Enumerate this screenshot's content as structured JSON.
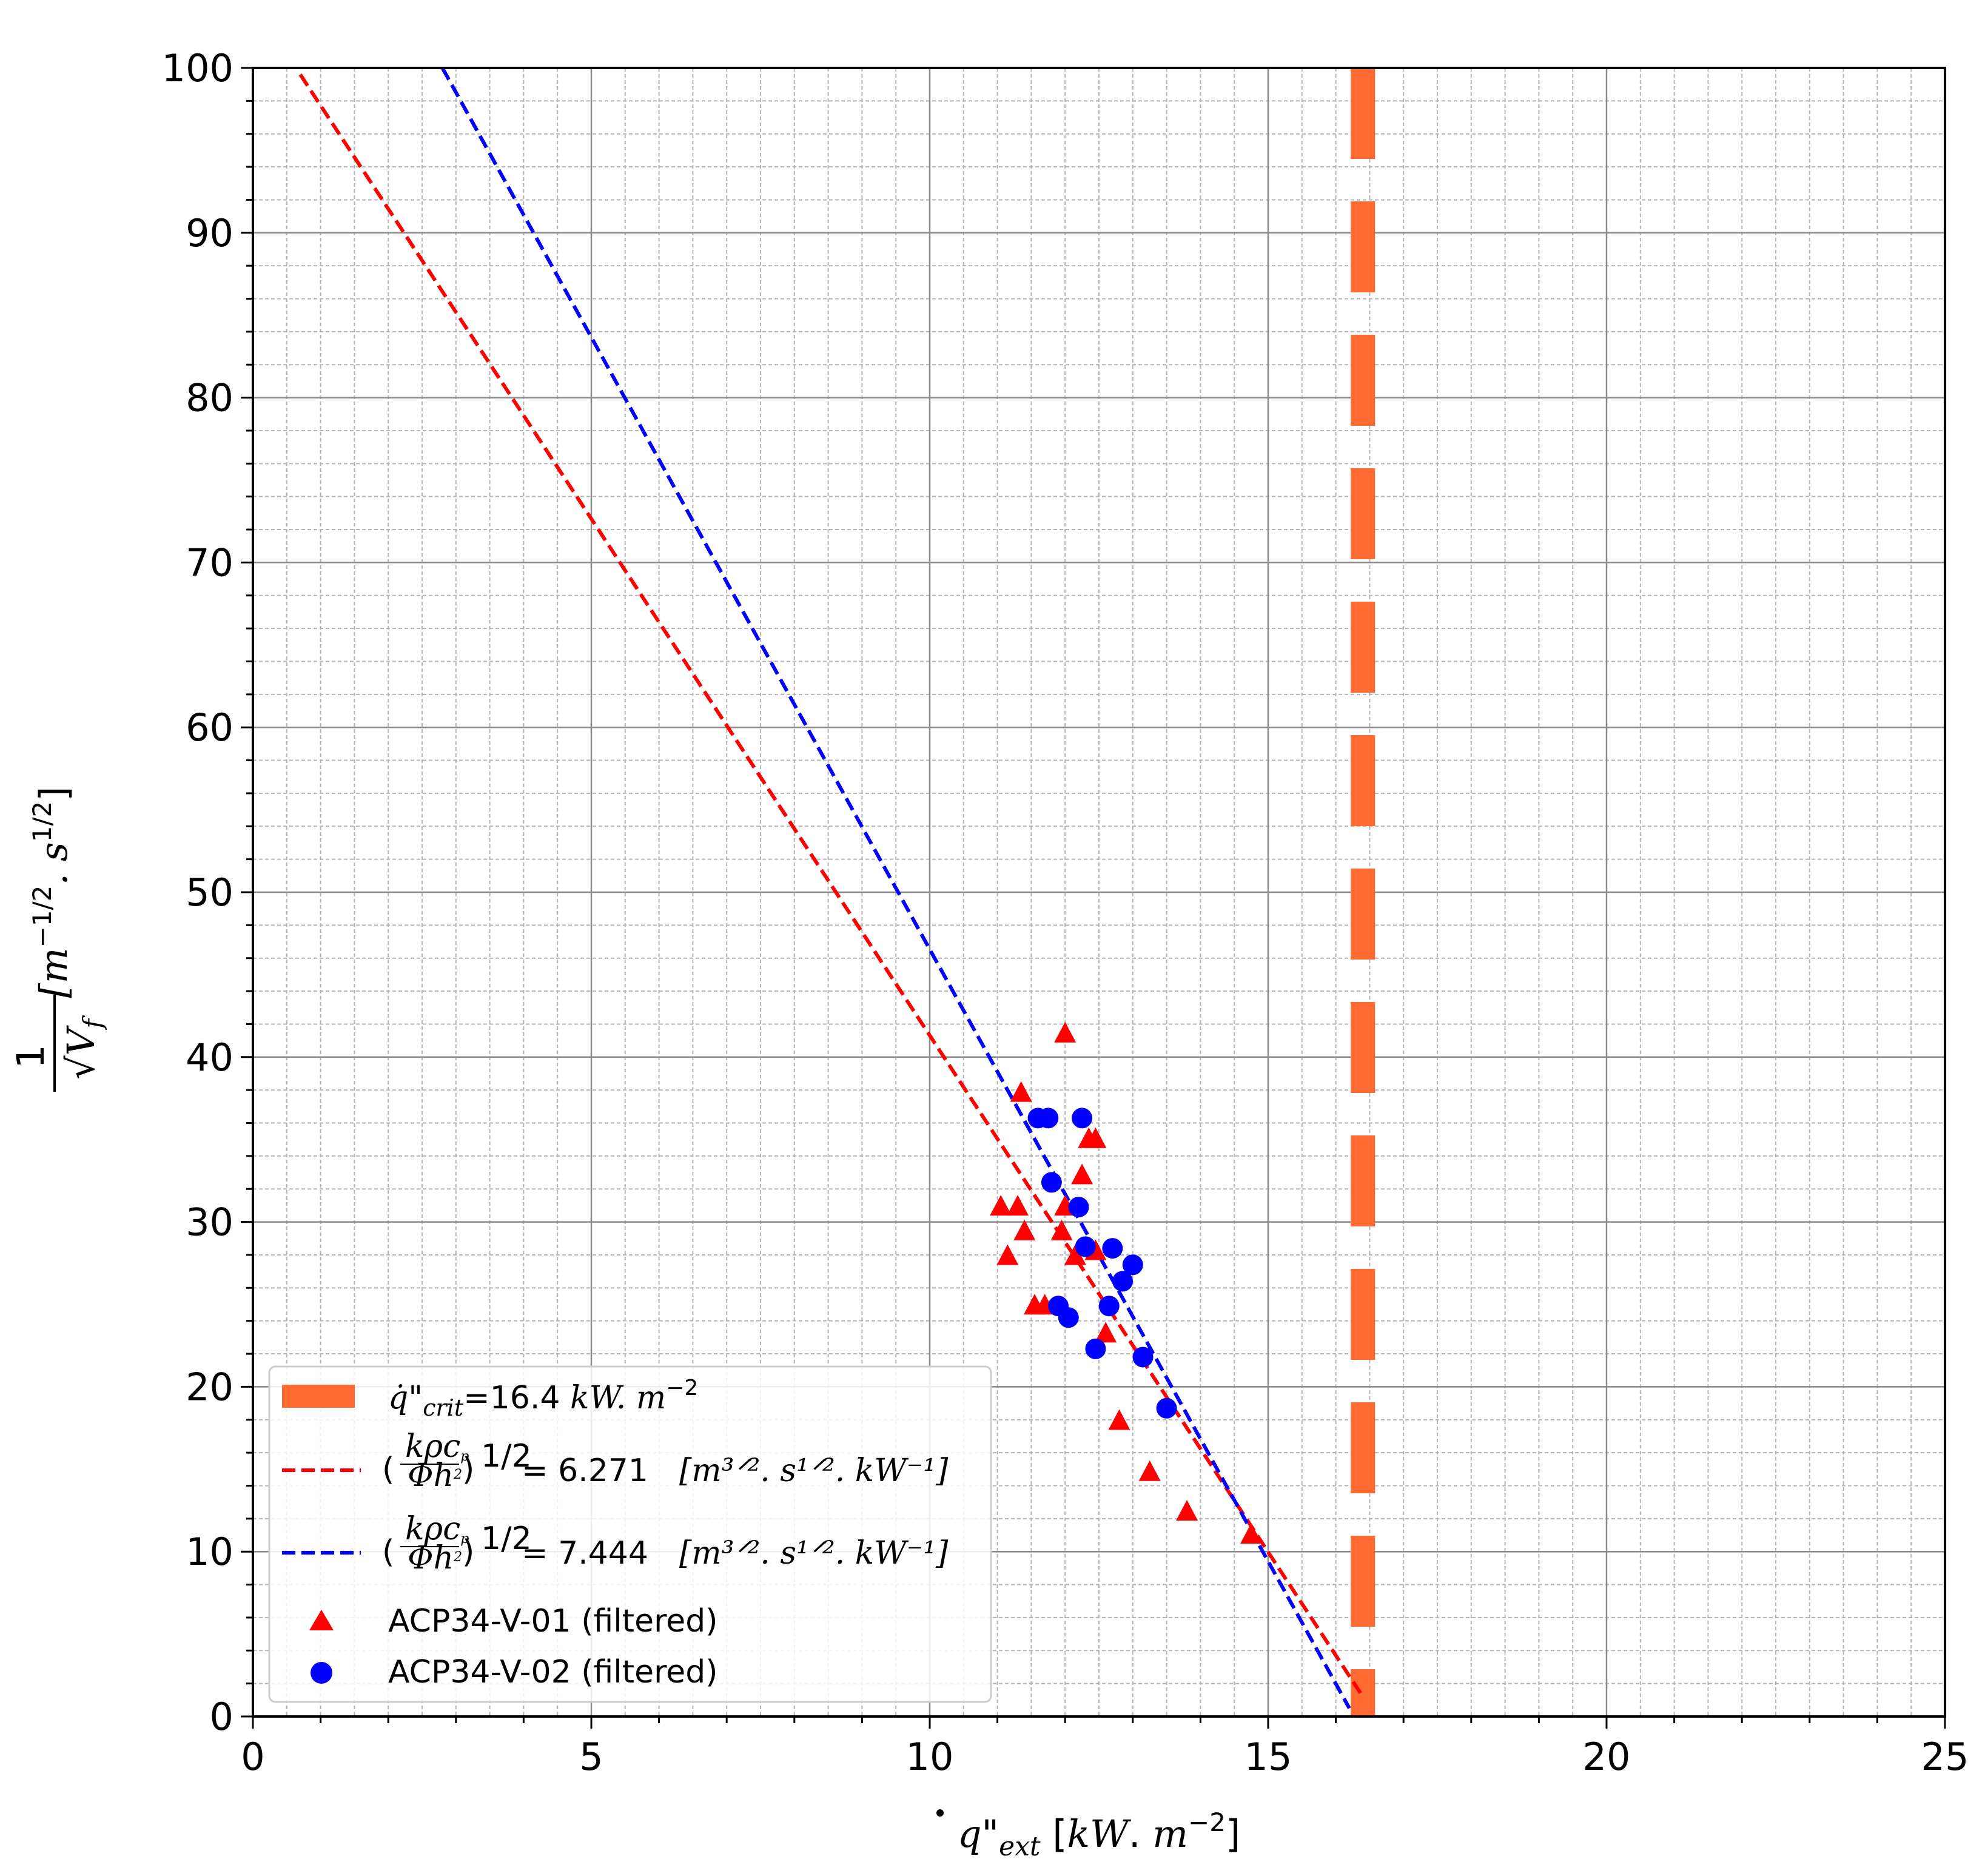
{
  "chart_data": {
    "type": "scatter",
    "title": "",
    "xlabel": "q̇\"ext [kW. m⁻²]",
    "ylabel": "1/√Vf [m^-1/2 . s^1/2]",
    "xlim": [
      0,
      25
    ],
    "ylim": [
      0,
      100
    ],
    "xticks": [
      0,
      5,
      10,
      15,
      20,
      25
    ],
    "yticks": [
      0,
      10,
      20,
      30,
      40,
      50,
      60,
      70,
      80,
      90,
      100
    ],
    "grid": "major and minor",
    "legend_position": "lower-left",
    "critical_line": {
      "label": "q̇\"crit=16.4 kW. m⁻²",
      "label_main": "q̇\"",
      "label_sub": "crit",
      "label_eq": "=16.4 ",
      "label_units": "kW. m",
      "label_exp": "−2",
      "x": 16.4,
      "color": "#ff6a33"
    },
    "fits": [
      {
        "name": "(kρcp/Φh²)^1/2 = 6.271 [m^3/2. s^1/2. kW^-1]",
        "value_text": "= 6.271",
        "units_text": "[m³ᐟ². s¹ᐟ². kW⁻¹]",
        "color": "#ff0000",
        "x": [
          0.7,
          16.4
        ],
        "y": [
          99.6,
          1.2
        ]
      },
      {
        "name": "(kρcp/Φh²)^1/2 = 7.444 [m^3/2. s^1/2. kW^-1]",
        "value_text": "= 7.444",
        "units_text": "[m³ᐟ². s¹ᐟ². kW⁻¹]",
        "color": "#0000ff",
        "x": [
          2.8,
          16.2
        ],
        "y": [
          100,
          0.5
        ]
      }
    ],
    "fit_formula": {
      "numerator": "kρc",
      "numerator_sub": "p",
      "denominator": "Φh",
      "denominator_sup": "2",
      "exponent": "1/2"
    },
    "series": [
      {
        "name": "ACP34-V-01 (filtered)",
        "marker": "triangle",
        "color": "#ff0000",
        "points": [
          [
            11.35,
            37.8
          ],
          [
            12.0,
            41.4
          ],
          [
            11.05,
            30.9
          ],
          [
            11.3,
            30.9
          ],
          [
            11.15,
            27.9
          ],
          [
            11.4,
            29.4
          ],
          [
            11.55,
            24.9
          ],
          [
            11.7,
            24.9
          ],
          [
            11.95,
            29.4
          ],
          [
            12.0,
            30.9
          ],
          [
            12.15,
            27.9
          ],
          [
            12.25,
            32.8
          ],
          [
            12.35,
            35.0
          ],
          [
            12.45,
            35.0
          ],
          [
            12.45,
            28.2
          ],
          [
            12.6,
            23.2
          ],
          [
            12.8,
            17.9
          ],
          [
            13.25,
            14.8
          ],
          [
            13.8,
            12.4
          ],
          [
            14.75,
            11.0
          ]
        ]
      },
      {
        "name": "ACP34-V-02 (filtered)",
        "marker": "circle",
        "color": "#0000ff",
        "points": [
          [
            11.6,
            36.3
          ],
          [
            11.75,
            36.3
          ],
          [
            12.25,
            36.3
          ],
          [
            11.8,
            32.4
          ],
          [
            12.2,
            30.9
          ],
          [
            12.3,
            28.5
          ],
          [
            12.7,
            28.4
          ],
          [
            13.0,
            27.4
          ],
          [
            12.85,
            26.4
          ],
          [
            12.65,
            24.9
          ],
          [
            11.9,
            24.9
          ],
          [
            12.05,
            24.2
          ],
          [
            12.45,
            22.3
          ],
          [
            13.15,
            21.8
          ],
          [
            13.5,
            18.7
          ]
        ]
      }
    ]
  }
}
